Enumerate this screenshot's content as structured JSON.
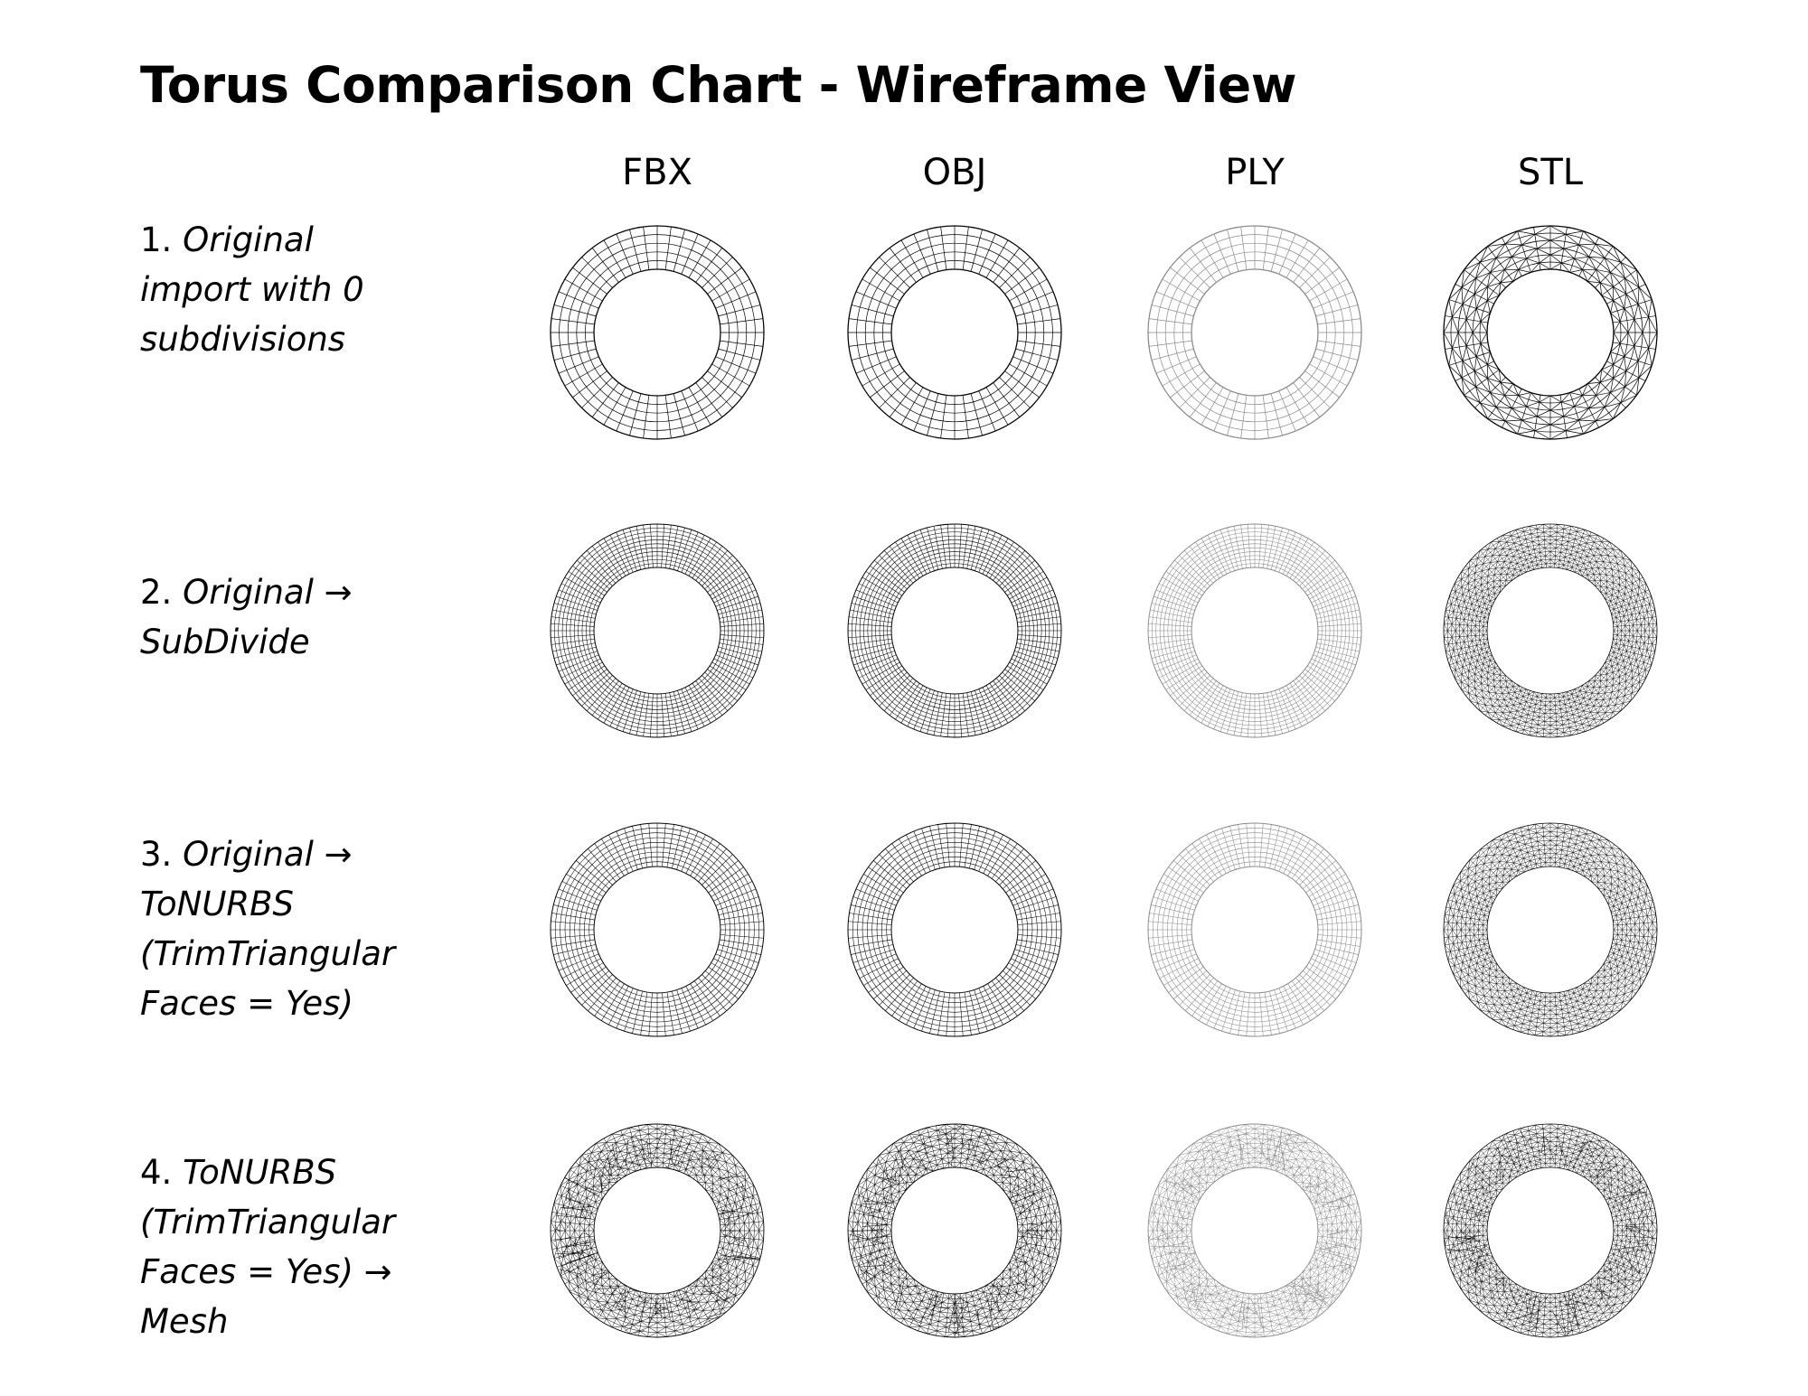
{
  "title": "Torus Comparison Chart - Wireframe View",
  "columns": [
    {
      "label": "FBX",
      "stroke": "#000000"
    },
    {
      "label": "OBJ",
      "stroke": "#000000"
    },
    {
      "label": "PLY",
      "stroke": "#8a8a8a"
    },
    {
      "label": "STL",
      "stroke": "#000000"
    }
  ],
  "rows": [
    {
      "number": "1.",
      "description": "Original\nimport with 0\nsubdivisions",
      "variant": "quad-coarse"
    },
    {
      "number": "2.",
      "description": "Original →\nSubDivide",
      "variant": "quad-fine"
    },
    {
      "number": "3.",
      "description": "Original →\nToNURBS\n(TrimTriangular\nFaces = Yes)",
      "variant": "quad-medium"
    },
    {
      "number": "4.",
      "description": "ToNURBS\n(TrimTriangular\nFaces = Yes) →\nMesh",
      "variant": "triangulated-dense"
    }
  ]
}
